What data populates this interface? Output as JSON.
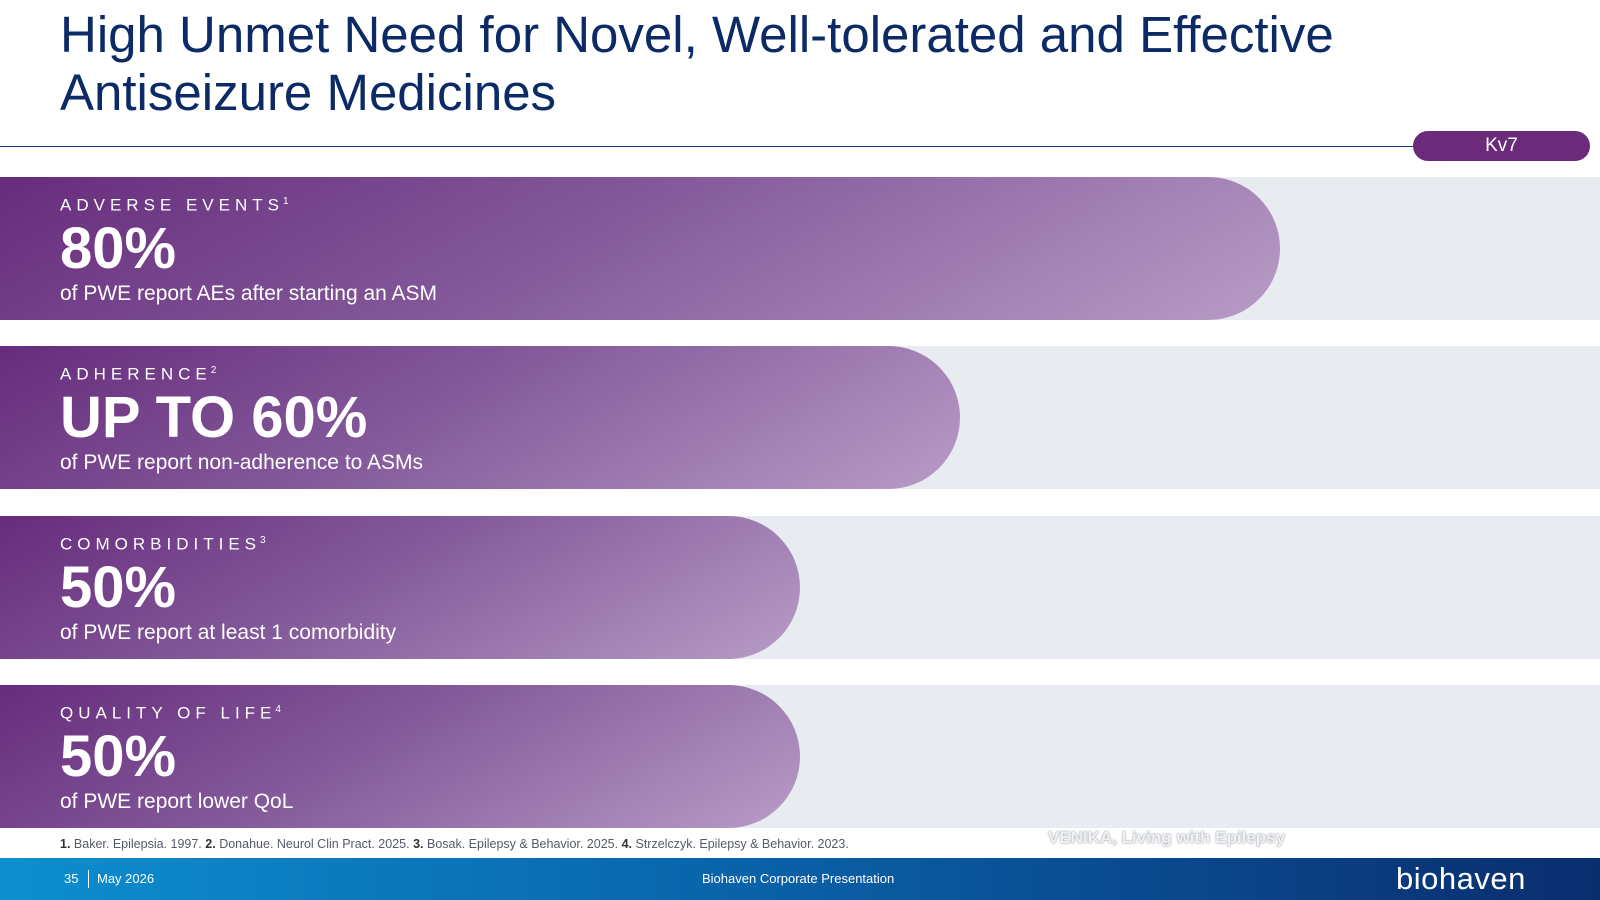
{
  "slide": {
    "title_line1": "High Unmet Need for Novel, Well-tolerated and Effective",
    "title_line2": "Antiseizure Medicines",
    "badge": "Kv7"
  },
  "stats": [
    {
      "label": "ADVERSE EVENTS",
      "sup": "1",
      "value": "80%",
      "description": "of PWE report AEs after starting an ASM"
    },
    {
      "label": "ADHERENCE",
      "sup": "2",
      "value": "UP TO 60%",
      "description": "of PWE report non-adherence to ASMs"
    },
    {
      "label": "COMORBIDITIES",
      "sup": "3",
      "value": "50%",
      "description": "of PWE report at least 1 comorbidity"
    },
    {
      "label": "QUALITY OF LIFE",
      "sup": "4",
      "value": "50%",
      "description": "of PWE report lower QoL"
    }
  ],
  "footnotes": [
    {
      "num": "1.",
      "text": "Baker. Epilepsia. 1997."
    },
    {
      "num": "2.",
      "text": "Donahue. Neurol Clin Pract. 2025."
    },
    {
      "num": "3.",
      "text": "Bosak. Epilepsy & Behavior. 2025."
    },
    {
      "num": "4.",
      "text": "Strzelczyk. Epilepsy & Behavior. 2023."
    }
  ],
  "watermark": "VENIKA, Living with Epilepsy",
  "footer": {
    "page_number": "35",
    "date": "May 2026",
    "center_text": "Biohaven Corporate Presentation",
    "logo": "biohaven"
  },
  "colors": {
    "title": "#0b2a66",
    "accent_purple": "#6b2a7a",
    "row_background": "#e8ebf0",
    "footer_start": "#0c8fd0",
    "footer_end": "#0a2d6e"
  }
}
